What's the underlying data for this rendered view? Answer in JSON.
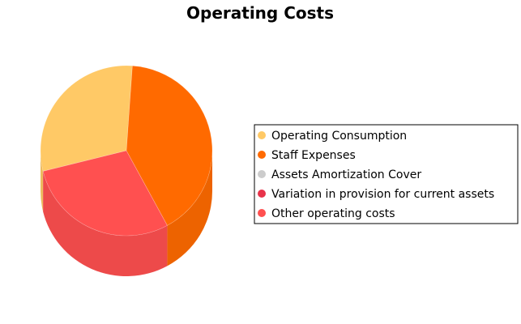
{
  "chart_data": {
    "type": "pie",
    "title": "Operating Costs",
    "legend_position": "right",
    "render_style": "3d-cylinder",
    "slices": [
      {
        "label": "Operating Consumption",
        "value": 30,
        "color": "#FFC966"
      },
      {
        "label": "Staff Expenses",
        "value": 41,
        "color": "#FF6A00"
      },
      {
        "label": "Assets Amortization Cover",
        "value": 0,
        "color": "#CCCCCC"
      },
      {
        "label": "Variation in provision for current assets",
        "value": 0,
        "color": "#E8334A"
      },
      {
        "label": "Other operating costs",
        "value": 29,
        "color": "#FF5050"
      }
    ]
  }
}
